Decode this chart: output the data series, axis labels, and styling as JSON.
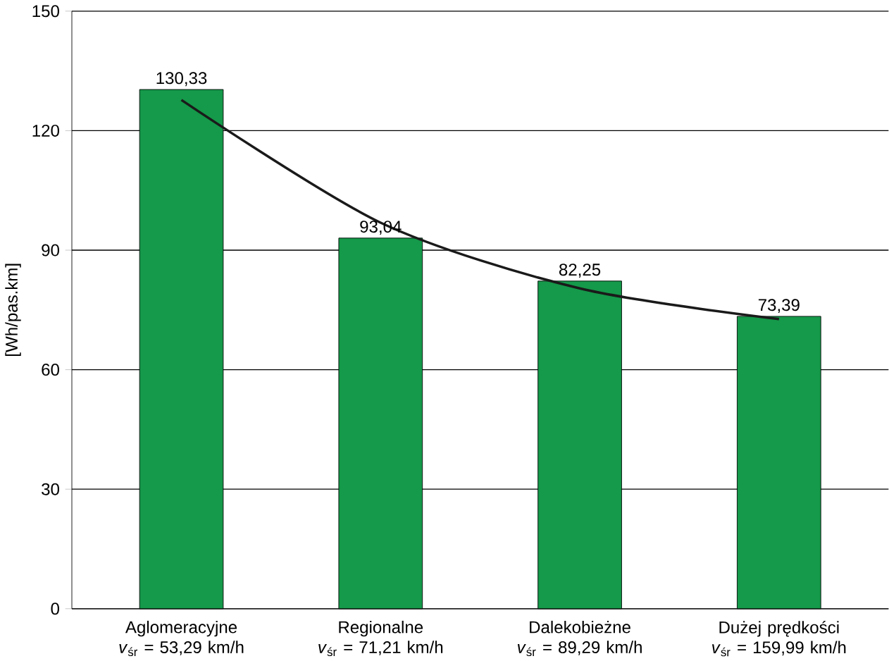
{
  "chart_data": {
    "type": "bar",
    "ylabel": "[Wh/pas.km]",
    "categories": [
      "Aglomeracyjne *v*$_{śr}$ = 53,29 km/h",
      "Regionalne *v*$_{śr}$ = 71,21 km/h",
      "Dalekobieżne *v*$_{śr}$ = 89,29 km/h",
      "Dużej prędkości *v*$_{śr}$ = 159,99 km/h"
    ],
    "series": [
      {
        "color": "#15994a",
        "values": [
          130.33,
          93.04,
          82.25,
          73.39
        ],
        "value_labels": [
          "130,33",
          "93,04",
          "82,25",
          "73,39"
        ]
      },
      {
        "type": "line",
        "color": "#1a1a1a",
        "values": [
          127.7,
          96.9,
          80.4,
          72.7
        ]
      }
    ],
    "ylim": [
      0,
      150
    ],
    "yticks": [
      0,
      30,
      60,
      90,
      120,
      150
    ],
    "grid": "y"
  }
}
